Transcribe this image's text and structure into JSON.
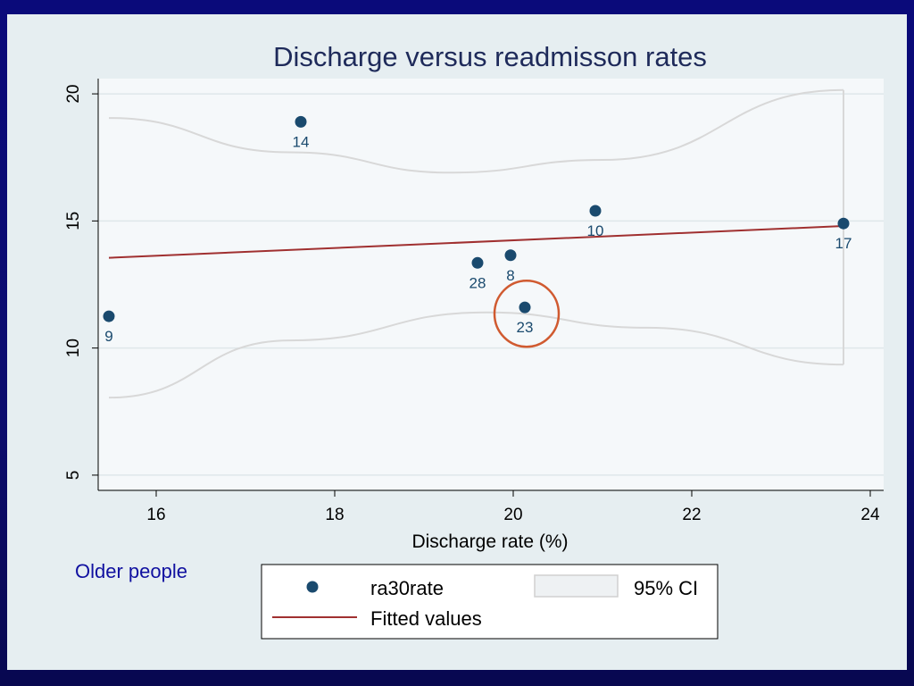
{
  "caption": "Older people",
  "colors": {
    "marker": "#1a4a6e",
    "fit": "#a03030",
    "ci": "#d8d8d8",
    "highlight": "#d05a30"
  },
  "chart_data": {
    "type": "scatter",
    "title": "Discharge versus readmisson rates",
    "xlabel": "Discharge rate (%)",
    "ylabel": "",
    "xlim": [
      15.35,
      24.15
    ],
    "ylim": [
      4.4,
      20.6
    ],
    "xticks": [
      16,
      18,
      20,
      22,
      24
    ],
    "yticks": [
      5,
      10,
      15,
      20
    ],
    "grid": "horizontal",
    "series": [
      {
        "name": "ra30rate",
        "points": [
          {
            "x": 15.47,
            "y": 11.25,
            "label": "9"
          },
          {
            "x": 17.62,
            "y": 18.9,
            "label": "14"
          },
          {
            "x": 19.6,
            "y": 13.35,
            "label": "28"
          },
          {
            "x": 19.97,
            "y": 13.65,
            "label": "8"
          },
          {
            "x": 20.13,
            "y": 11.6,
            "label": "23"
          },
          {
            "x": 20.92,
            "y": 15.4,
            "label": "10"
          },
          {
            "x": 23.7,
            "y": 14.9,
            "label": "17"
          }
        ]
      },
      {
        "name": "Fitted values",
        "line": [
          {
            "x": 15.47,
            "y": 13.55
          },
          {
            "x": 23.7,
            "y": 14.8
          }
        ]
      },
      {
        "name": "95% CI",
        "upper": [
          {
            "x": 15.47,
            "y": 19.05
          },
          {
            "x": 17.5,
            "y": 17.7
          },
          {
            "x": 19.3,
            "y": 16.9
          },
          {
            "x": 21.0,
            "y": 17.4
          },
          {
            "x": 23.7,
            "y": 20.15
          }
        ],
        "lower": [
          {
            "x": 15.47,
            "y": 8.05
          },
          {
            "x": 17.5,
            "y": 10.3
          },
          {
            "x": 19.7,
            "y": 11.4
          },
          {
            "x": 21.5,
            "y": 10.8
          },
          {
            "x": 23.7,
            "y": 9.35
          }
        ]
      }
    ],
    "highlight": {
      "x": 20.15,
      "y": 11.35,
      "label": "23"
    },
    "legend": {
      "placement": "bottom",
      "entries": [
        "ra30rate",
        "95% CI",
        "Fitted values"
      ]
    }
  }
}
